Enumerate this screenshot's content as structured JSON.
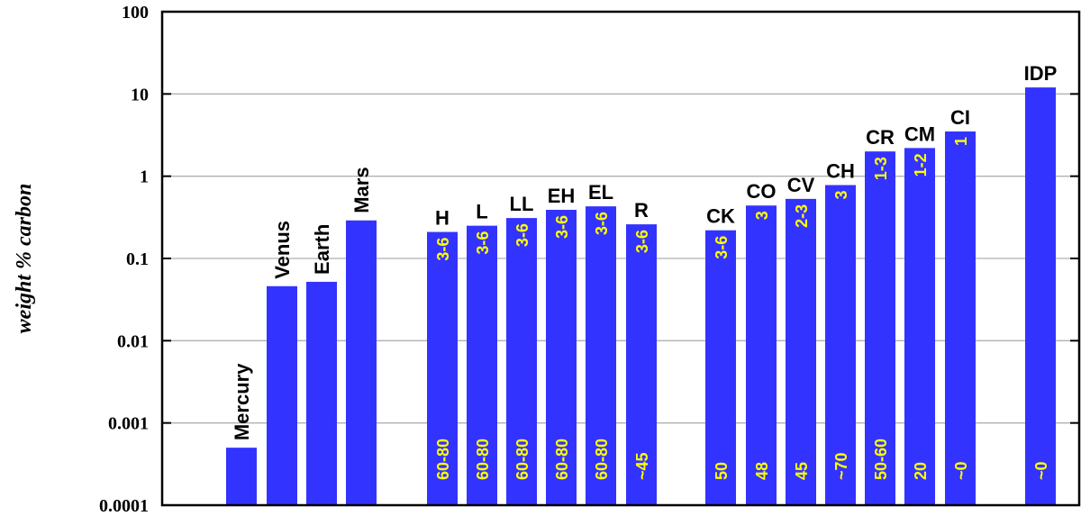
{
  "chart_data": {
    "type": "bar",
    "title": "",
    "xlabel": "",
    "ylabel": "weight % carbon",
    "yscale": "log",
    "ylim": [
      0.0001,
      100
    ],
    "yticks": [
      "0.0001",
      "0.001",
      "0.01",
      "0.1",
      "1",
      "10",
      "100"
    ],
    "grid": "horizontal",
    "colors": {
      "bar": "#3333ff",
      "inner_label": "#ffff00",
      "grid": "#b0b0b0"
    },
    "categories": [
      "Mercury",
      "Venus",
      "Earth",
      "Mars",
      "H",
      "L",
      "LL",
      "EH",
      "EL",
      "R",
      "CK",
      "CO",
      "CV",
      "CH",
      "CR",
      "CM",
      "CI",
      "IDP"
    ],
    "values": [
      0.0005,
      0.046,
      0.052,
      0.29,
      0.21,
      0.25,
      0.31,
      0.39,
      0.43,
      0.26,
      0.22,
      0.44,
      0.53,
      0.78,
      2.0,
      2.2,
      3.5,
      12
    ],
    "label_rotated": [
      true,
      true,
      true,
      true,
      false,
      false,
      false,
      false,
      false,
      false,
      false,
      false,
      false,
      false,
      false,
      false,
      false,
      false
    ],
    "upper_labels": [
      "",
      "",
      "",
      "",
      "3-6",
      "3-6",
      "3-6",
      "3-6",
      "3-6",
      "3-6",
      "3-6",
      "3",
      "2-3",
      "3",
      "1-3",
      "1-2",
      "1",
      ""
    ],
    "lower_labels": [
      "",
      "",
      "",
      "",
      "60-80",
      "60-80",
      "60-80",
      "60-80",
      "60-80",
      "~45",
      "50",
      "48",
      "45",
      "~70",
      "50-60",
      "20",
      "~0",
      "~0"
    ]
  }
}
